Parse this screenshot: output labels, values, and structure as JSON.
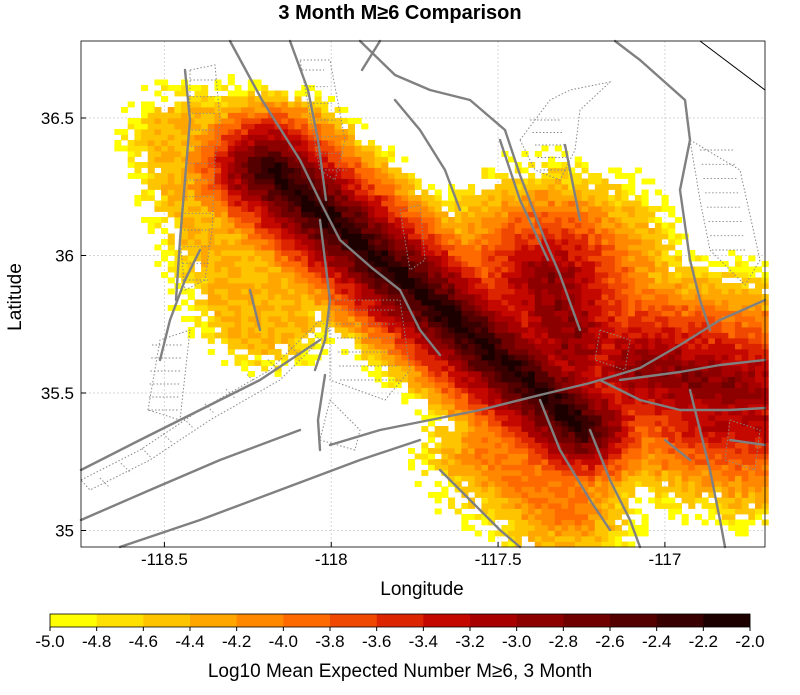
{
  "title": "3 Month M≥6 Comparison",
  "map": {
    "xlabel": "Longitude",
    "ylabel": "Latitude",
    "xlim": [
      -118.75,
      -116.7
    ],
    "ylim": [
      34.94,
      36.78
    ],
    "x_ticks": [
      {
        "value": -118.5,
        "label": "-118.5"
      },
      {
        "value": -118.0,
        "label": "-118"
      },
      {
        "value": -117.5,
        "label": "-117.5"
      },
      {
        "value": -117.0,
        "label": "-117"
      }
    ],
    "y_ticks": [
      {
        "value": 35.0,
        "label": "35"
      },
      {
        "value": 35.5,
        "label": "35.5"
      },
      {
        "value": 36.0,
        "label": "36"
      },
      {
        "value": 36.5,
        "label": "36.5"
      }
    ],
    "grid": true,
    "cell_size_deg": 0.02,
    "fault_color": "#808080",
    "dotted_color": "#888888"
  },
  "colorbar": {
    "label": "Log10 Mean Expected Number M≥6, 3 Month",
    "range": [
      -5.0,
      -2.0
    ],
    "ticks": [
      "-5.0",
      "-4.8",
      "-4.6",
      "-4.4",
      "-4.2",
      "-4.0",
      "-3.8",
      "-3.6",
      "-3.4",
      "-3.2",
      "-3.0",
      "-2.8",
      "-2.6",
      "-2.4",
      "-2.2",
      "-2.0"
    ],
    "colors": [
      "#ffff00",
      "#ffe000",
      "#ffc400",
      "#ffa600",
      "#ff8800",
      "#ff6a00",
      "#f04800",
      "#dc2400",
      "#c40800",
      "#a80000",
      "#8c0000",
      "#700000",
      "#540000",
      "#380000",
      "#1c0000"
    ]
  }
}
